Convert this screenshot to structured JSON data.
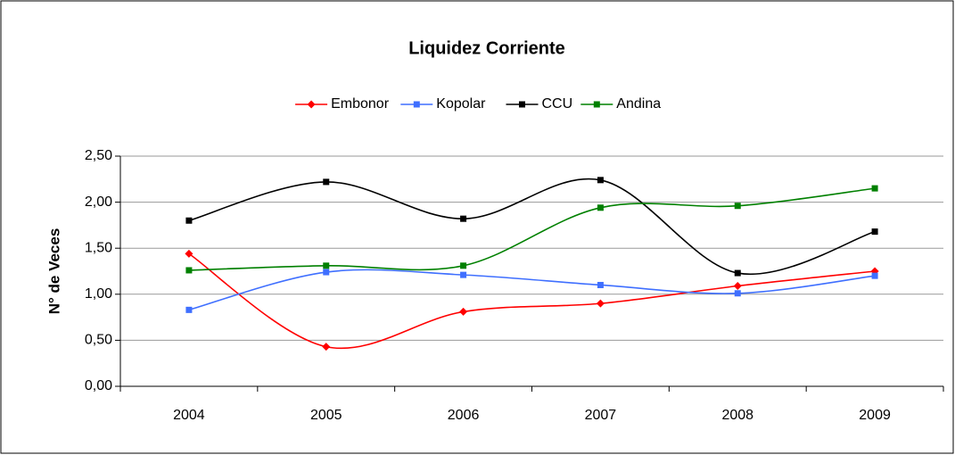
{
  "chart_data": {
    "type": "line",
    "title": "Liquidez Corriente",
    "y_label": "N° de Veces",
    "categories": [
      "2004",
      "2005",
      "2006",
      "2007",
      "2008",
      "2009"
    ],
    "series": [
      {
        "name": "Embonor",
        "color": "#ff0000",
        "marker": "diamond",
        "values": [
          1.44,
          0.43,
          0.81,
          0.9,
          1.09,
          1.25
        ]
      },
      {
        "name": "Kopolar",
        "color": "#3f6fff",
        "marker": "square",
        "values": [
          0.83,
          1.24,
          1.21,
          1.1,
          1.01,
          1.2
        ]
      },
      {
        "name": "CCU",
        "color": "#000000",
        "marker": "square",
        "values": [
          1.8,
          2.22,
          1.82,
          2.24,
          1.23,
          1.68
        ]
      },
      {
        "name": "Andina",
        "color": "#008000",
        "marker": "square",
        "values": [
          1.26,
          1.31,
          1.31,
          1.94,
          1.96,
          2.15
        ]
      }
    ],
    "ylim": [
      0,
      2.5
    ],
    "yticks": [
      {
        "value": 0,
        "label": "0,00"
      },
      {
        "value": 0.5,
        "label": "0,50"
      },
      {
        "value": 1,
        "label": "1,00"
      },
      {
        "value": 1.5,
        "label": "1,50"
      },
      {
        "value": 2,
        "label": "2,00"
      },
      {
        "value": 2.5,
        "label": "2,50"
      }
    ],
    "grid": true,
    "smooth": true,
    "legend": "top"
  }
}
